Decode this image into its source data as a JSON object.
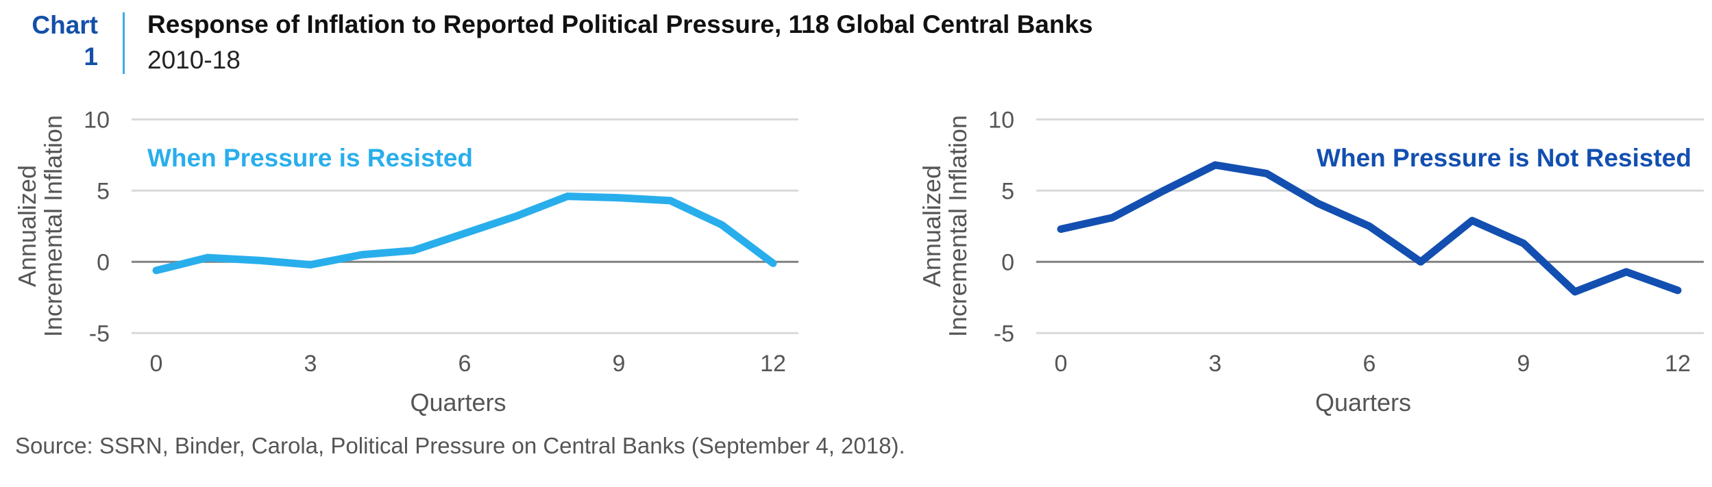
{
  "header": {
    "chart_label_line1": "Chart",
    "chart_label_line2": "1",
    "title": "Response of Inflation to Reported Political Pressure, 118 Global Central Banks",
    "subtitle": "2010-18"
  },
  "source": "Source: SSRN, Binder, Carola, Political Pressure on Central Banks (September 4, 2018).",
  "colors": {
    "chart_label": "#1450a8",
    "divider": "#3aaee8",
    "resisted": "#29aeec",
    "not_resisted": "#124fb0",
    "gridline": "#d9d9d9",
    "zero_line": "#808080",
    "tick_text": "#555555"
  },
  "chart_data": [
    {
      "type": "line",
      "title": "",
      "series_label": "When Pressure is Resisted",
      "legend_placement": "top-left",
      "xlabel": "Quarters",
      "ylabel": "Annualized Incremental Inflation",
      "x": [
        0,
        1,
        2,
        3,
        4,
        5,
        6,
        7,
        8,
        9,
        10,
        11,
        12
      ],
      "series": [
        {
          "name": "When Pressure is Resisted",
          "values": [
            -0.6,
            0.3,
            0.1,
            -0.2,
            0.5,
            0.8,
            2.0,
            3.2,
            4.6,
            4.5,
            4.3,
            2.6,
            -0.1
          ]
        }
      ],
      "xticks": [
        0,
        3,
        6,
        9,
        12
      ],
      "xtick_labels": [
        "0",
        "3",
        "6",
        "9",
        "12"
      ],
      "yticks": [
        10,
        5,
        0,
        -5
      ],
      "ytick_labels": [
        "10",
        "5",
        "0",
        "-5"
      ],
      "xlim": [
        0,
        12
      ],
      "ylim": [
        -5,
        10
      ],
      "grid": true
    },
    {
      "type": "line",
      "title": "",
      "series_label": "When Pressure is Not Resisted",
      "legend_placement": "top-right",
      "xlabel": "Quarters",
      "ylabel": "Annualized Incremental Inflation",
      "x": [
        0,
        1,
        2,
        3,
        4,
        5,
        6,
        7,
        8,
        9,
        10,
        11,
        12
      ],
      "series": [
        {
          "name": "When Pressure is Not Resisted",
          "values": [
            2.3,
            3.1,
            5.0,
            6.8,
            6.2,
            4.1,
            2.5,
            0.0,
            2.9,
            1.3,
            -2.1,
            -0.7,
            -2.0
          ]
        }
      ],
      "xticks": [
        0,
        3,
        6,
        9,
        12
      ],
      "xtick_labels": [
        "0",
        "3",
        "6",
        "9",
        "12"
      ],
      "yticks": [
        10,
        5,
        0,
        -5
      ],
      "ytick_labels": [
        "10",
        "5",
        "0",
        "-5"
      ],
      "xlim": [
        0,
        12
      ],
      "ylim": [
        -5,
        10
      ],
      "grid": true
    }
  ]
}
